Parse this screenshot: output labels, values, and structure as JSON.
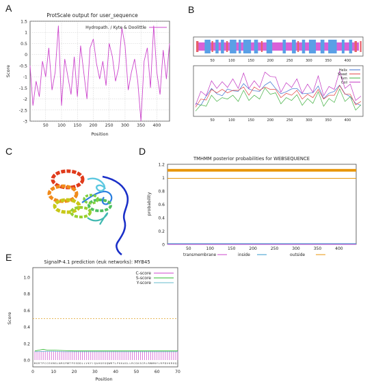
{
  "panels": {
    "a": {
      "letter": "A"
    },
    "b": {
      "letter": "B"
    },
    "c": {
      "letter": "C"
    },
    "d": {
      "letter": "D"
    },
    "e": {
      "letter": "E"
    }
  },
  "chart_data": [
    {
      "id": "A",
      "type": "line",
      "title": "ProtScale output for user_sequence",
      "xlabel": "Position",
      "ylabel": "Score",
      "xlim": [
        1,
        440
      ],
      "ylim": [
        -3,
        1.5
      ],
      "xticks": [
        50,
        100,
        150,
        200,
        250,
        300,
        350,
        400
      ],
      "yticks": [
        1.5,
        1,
        0.5,
        0,
        -0.5,
        -1,
        -1.5,
        -2,
        -2.5,
        -3
      ],
      "grid": true,
      "legend_position": "top-right",
      "series": [
        {
          "name": "Hydropath. / Kyte & Doolittle",
          "color": "#cc44cc",
          "x": [
            1,
            10,
            20,
            30,
            40,
            50,
            60,
            70,
            80,
            90,
            100,
            110,
            120,
            130,
            140,
            150,
            160,
            170,
            180,
            190,
            200,
            210,
            220,
            230,
            240,
            250,
            260,
            270,
            280,
            290,
            300,
            310,
            320,
            330,
            340,
            350,
            360,
            370,
            380,
            390,
            400,
            410,
            420,
            430,
            440
          ],
          "y": [
            -0.5,
            -2.3,
            -1.2,
            -1.9,
            -0.3,
            -1.0,
            0.3,
            -1.6,
            -0.8,
            1.3,
            -2.3,
            -0.2,
            -1.0,
            -1.8,
            -0.1,
            -1.9,
            0.4,
            -0.8,
            -2.0,
            0.3,
            0.7,
            -0.4,
            -1.1,
            -0.3,
            -1.4,
            0.5,
            -0.1,
            -1.2,
            -0.6,
            1.2,
            0.4,
            -1.6,
            -0.8,
            -0.2,
            -1.2,
            -3.0,
            -0.3,
            0.3,
            -1.5,
            1.3,
            -0.8,
            -1.8,
            0.2,
            -1.1,
            0.5
          ]
        }
      ]
    },
    {
      "id": "B",
      "type": "line",
      "xticks": [
        50,
        100,
        150,
        200,
        250,
        300,
        350,
        400
      ],
      "xlim": [
        1,
        440
      ],
      "legend_position": "top-right",
      "strip_colors": {
        "helix": "#5aa0e6",
        "sheet": "#e8606a",
        "coil": "#d860d8"
      },
      "series": [
        {
          "name": "Helix",
          "color": "#3a6fd0",
          "values": [
            0.3,
            0.2,
            0.45,
            0.55,
            0.5,
            0.4,
            0.6,
            0.5,
            0.55,
            0.65,
            0.6,
            0.5,
            0.55,
            0.62,
            0.75,
            0.55,
            0.5,
            0.48,
            0.6,
            0.55,
            0.5,
            0.45,
            0.52,
            0.6,
            0.4,
            0.45,
            0.55,
            0.62,
            0.5,
            0.38,
            0.3,
            0.2
          ]
        },
        {
          "name": "Sheet",
          "color": "#e04040",
          "values": [
            0.25,
            0.3,
            0.4,
            0.5,
            0.55,
            0.5,
            0.55,
            0.48,
            0.6,
            0.55,
            0.5,
            0.55,
            0.6,
            0.55,
            0.62,
            0.5,
            0.45,
            0.42,
            0.5,
            0.48,
            0.42,
            0.4,
            0.45,
            0.5,
            0.42,
            0.38,
            0.5,
            0.58,
            0.52,
            0.4,
            0.3,
            0.25
          ]
        },
        {
          "name": "Turn",
          "color": "#40b040",
          "values": [
            0.2,
            0.15,
            0.3,
            0.35,
            0.4,
            0.3,
            0.45,
            0.35,
            0.4,
            0.45,
            0.42,
            0.35,
            0.45,
            0.5,
            0.55,
            0.4,
            0.35,
            0.3,
            0.42,
            0.36,
            0.32,
            0.28,
            0.36,
            0.42,
            0.3,
            0.28,
            0.38,
            0.48,
            0.4,
            0.32,
            0.22,
            0.15
          ]
        },
        {
          "name": "Coil",
          "color": "#c030c0",
          "values": [
            0.35,
            0.4,
            0.55,
            0.62,
            0.7,
            0.6,
            0.72,
            0.66,
            0.7,
            0.78,
            0.7,
            0.62,
            0.72,
            0.8,
            0.95,
            0.7,
            0.62,
            0.58,
            0.72,
            0.66,
            0.6,
            0.55,
            0.62,
            0.72,
            0.55,
            0.5,
            0.68,
            0.82,
            0.7,
            0.55,
            0.45,
            0.3
          ]
        }
      ]
    },
    {
      "id": "D",
      "type": "line",
      "title": "TMHMM posterior probabilities for WEBSEQUENCE",
      "ylabel": "probability",
      "xlim": [
        1,
        440
      ],
      "ylim": [
        0,
        1.2
      ],
      "xticks": [
        50,
        100,
        150,
        200,
        250,
        300,
        350,
        400
      ],
      "yticks": [
        0,
        0.2,
        0.4,
        0.6,
        0.8,
        1,
        1.2
      ],
      "legend_position": "bottom",
      "series": [
        {
          "name": "transmembrane",
          "color": "#cc44cc",
          "x": [
            1,
            440
          ],
          "y": [
            0,
            0
          ]
        },
        {
          "name": "inside",
          "color": "#3399cc",
          "x": [
            1,
            440
          ],
          "y": [
            0.01,
            0.01
          ]
        },
        {
          "name": "outside",
          "color": "#e8960a",
          "x": [
            1,
            440
          ],
          "y": [
            0.99,
            0.99
          ]
        }
      ]
    },
    {
      "id": "E",
      "type": "line",
      "title": "SignalP-4.1 prediction (euk networks): MYB45",
      "xlabel": "Position",
      "ylabel": "Score",
      "xlim": [
        0,
        70
      ],
      "ylim": [
        0,
        1.0
      ],
      "xticks": [
        0,
        10,
        20,
        30,
        40,
        50,
        60,
        70
      ],
      "yticks": [
        0,
        0.2,
        0.4,
        0.6,
        0.8,
        1.0
      ],
      "legend_position": "top-right",
      "threshold": 0.5,
      "sequence": "MGRTPCCEKMGLNRGPWTPESDDLLVKYIQAHGEGQWRTLPKKAGLLRCGKSCRLRWMNYLRPDVKRGQI",
      "series": [
        {
          "name": "C-score",
          "color": "#cc44cc",
          "x": [
            1,
            5,
            10,
            15,
            20,
            25,
            30,
            35,
            40,
            45,
            50,
            55,
            60,
            65,
            70
          ],
          "y": [
            0.11,
            0.11,
            0.11,
            0.11,
            0.11,
            0.11,
            0.11,
            0.11,
            0.11,
            0.11,
            0.11,
            0.11,
            0.11,
            0.11,
            0.11
          ]
        },
        {
          "name": "S-score",
          "color": "#2eb82e",
          "x": [
            1,
            3,
            5,
            7,
            10,
            15,
            20,
            25,
            30,
            35,
            40,
            45,
            50,
            55,
            60,
            65,
            70
          ],
          "y": [
            0.11,
            0.12,
            0.13,
            0.12,
            0.12,
            0.115,
            0.11,
            0.11,
            0.11,
            0.11,
            0.11,
            0.11,
            0.11,
            0.11,
            0.11,
            0.11,
            0.11
          ]
        },
        {
          "name": "Y-score",
          "color": "#66bbcc",
          "x": [
            1,
            5,
            10,
            15,
            20,
            25,
            30,
            35,
            40,
            45,
            50,
            55,
            60,
            65,
            70
          ],
          "y": [
            0.1,
            0.105,
            0.105,
            0.1,
            0.1,
            0.1,
            0.1,
            0.1,
            0.1,
            0.1,
            0.1,
            0.1,
            0.1,
            0.1,
            0.1
          ]
        }
      ]
    }
  ]
}
